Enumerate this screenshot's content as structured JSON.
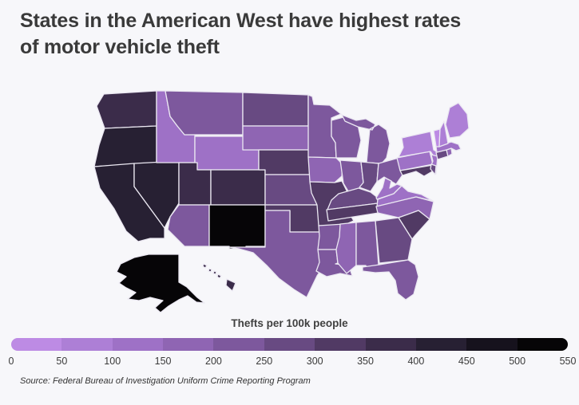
{
  "title": {
    "full": "States in the American West have highest rates of motor vehicle theft",
    "line1": "States in the American West have highest rates",
    "line2": "of motor vehicle theft"
  },
  "legend": {
    "title": "Thefts per 100k people",
    "min": 0,
    "max": 550,
    "step": 50,
    "ticks": [
      "0",
      "50",
      "100",
      "150",
      "200",
      "250",
      "300",
      "350",
      "400",
      "450",
      "500",
      "550"
    ],
    "colors": [
      "#bd8be4",
      "#ad7fd6",
      "#9e71c6",
      "#8f65b3",
      "#7d589d",
      "#684a82",
      "#513a64",
      "#3b2c4a",
      "#272033",
      "#16121d",
      "#060507"
    ]
  },
  "source": "Source: Federal Bureau of Investigation Uniform Crime Reporting Program",
  "colors": {
    "background": "#f7f7fa",
    "state_border": "#ebe8f2",
    "title_text": "#3a3a3a"
  },
  "chart_data": {
    "type": "choropleth",
    "region": "United States (50 states, Albers layout with Alaska and Hawaii insets)",
    "metric": "Motor vehicle thefts per 100k people",
    "title": "States in the American West have highest rates of motor vehicle theft",
    "scale": {
      "min": 0,
      "max": 550,
      "step": 50,
      "note": "values estimated from 50-unit color buckets"
    },
    "states": [
      {
        "abbr": "WA",
        "name": "Washington",
        "value": 375
      },
      {
        "abbr": "OR",
        "name": "Oregon",
        "value": 425
      },
      {
        "abbr": "CA",
        "name": "California",
        "value": 425
      },
      {
        "abbr": "NV",
        "name": "Nevada",
        "value": 425
      },
      {
        "abbr": "ID",
        "name": "Idaho",
        "value": 125
      },
      {
        "abbr": "MT",
        "name": "Montana",
        "value": 225
      },
      {
        "abbr": "WY",
        "name": "Wyoming",
        "value": 125
      },
      {
        "abbr": "UT",
        "name": "Utah",
        "value": 375
      },
      {
        "abbr": "CO",
        "name": "Colorado",
        "value": 375
      },
      {
        "abbr": "AZ",
        "name": "Arizona",
        "value": 225
      },
      {
        "abbr": "NM",
        "name": "New Mexico",
        "value": 525
      },
      {
        "abbr": "AK",
        "name": "Alaska",
        "value": 525
      },
      {
        "abbr": "HI",
        "name": "Hawaii",
        "value": 375
      },
      {
        "abbr": "ND",
        "name": "North Dakota",
        "value": 275
      },
      {
        "abbr": "SD",
        "name": "South Dakota",
        "value": 175
      },
      {
        "abbr": "NE",
        "name": "Nebraska",
        "value": 325
      },
      {
        "abbr": "KS",
        "name": "Kansas",
        "value": 275
      },
      {
        "abbr": "OK",
        "name": "Oklahoma",
        "value": 325
      },
      {
        "abbr": "TX",
        "name": "Texas",
        "value": 225
      },
      {
        "abbr": "MN",
        "name": "Minnesota",
        "value": 225
      },
      {
        "abbr": "IA",
        "name": "Iowa",
        "value": 175
      },
      {
        "abbr": "MO",
        "name": "Missouri",
        "value": 325
      },
      {
        "abbr": "AR",
        "name": "Arkansas",
        "value": 225
      },
      {
        "abbr": "LA",
        "name": "Louisiana",
        "value": 225
      },
      {
        "abbr": "MS",
        "name": "Mississippi",
        "value": 175
      },
      {
        "abbr": "WI",
        "name": "Wisconsin",
        "value": 225
      },
      {
        "abbr": "IL",
        "name": "Illinois",
        "value": 225
      },
      {
        "abbr": "MI",
        "name": "Michigan",
        "value": 225
      },
      {
        "abbr": "IN",
        "name": "Indiana",
        "value": 275
      },
      {
        "abbr": "OH",
        "name": "Ohio",
        "value": 225
      },
      {
        "abbr": "KY",
        "name": "Kentucky",
        "value": 275
      },
      {
        "abbr": "TN",
        "name": "Tennessee",
        "value": 325
      },
      {
        "abbr": "WV",
        "name": "West Virginia",
        "value": 125
      },
      {
        "abbr": "VA",
        "name": "Virginia",
        "value": 125
      },
      {
        "abbr": "NC",
        "name": "North Carolina",
        "value": 175
      },
      {
        "abbr": "SC",
        "name": "South Carolina",
        "value": 325
      },
      {
        "abbr": "GA",
        "name": "Georgia",
        "value": 275
      },
      {
        "abbr": "AL",
        "name": "Alabama",
        "value": 225
      },
      {
        "abbr": "FL",
        "name": "Florida",
        "value": 225
      },
      {
        "abbr": "PA",
        "name": "Pennsylvania",
        "value": 125
      },
      {
        "abbr": "NY",
        "name": "New York",
        "value": 75
      },
      {
        "abbr": "NJ",
        "name": "New Jersey",
        "value": 125
      },
      {
        "abbr": "MD",
        "name": "Maryland",
        "value": 325
      },
      {
        "abbr": "DE",
        "name": "Delaware",
        "value": 275
      },
      {
        "abbr": "CT",
        "name": "Connecticut",
        "value": 275
      },
      {
        "abbr": "RI",
        "name": "Rhode Island",
        "value": 175
      },
      {
        "abbr": "MA",
        "name": "Massachusetts",
        "value": 125
      },
      {
        "abbr": "VT",
        "name": "Vermont",
        "value": 25
      },
      {
        "abbr": "NH",
        "name": "New Hampshire",
        "value": 75
      },
      {
        "abbr": "ME",
        "name": "Maine",
        "value": 75
      }
    ]
  }
}
